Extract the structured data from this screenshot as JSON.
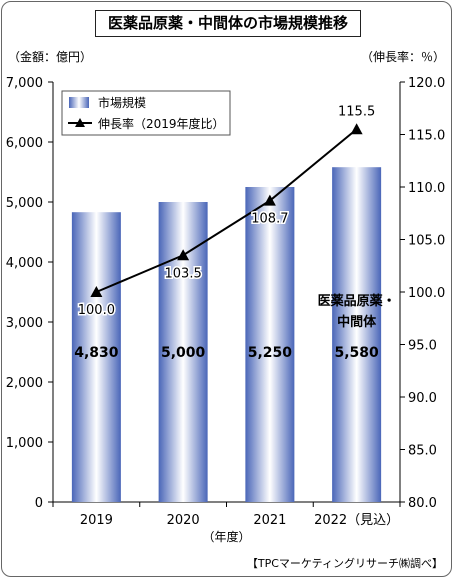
{
  "title": "医薬品原薬・中間体の市場規模推移",
  "unit_left": "（金額：億円）",
  "unit_right": "（伸長率：％）",
  "source": "【TPCマーケティングリサーチ㈱調べ】",
  "colors": {
    "bar_center": "#ffffff",
    "bar_edge": "#4a66b8",
    "line": "#000000",
    "axis": "#000000"
  },
  "chart_data": {
    "type": "bar+line",
    "categories": [
      "2019",
      "2020",
      "2021",
      "2022（見込）"
    ],
    "xlabel": "（年度）",
    "y_left": {
      "range": [
        0,
        7000
      ],
      "ticks": [
        "0",
        "1,000",
        "2,000",
        "3,000",
        "4,000",
        "5,000",
        "6,000",
        "7,000"
      ]
    },
    "y_right": {
      "range": [
        80.0,
        120.0
      ],
      "ticks": [
        "80.0",
        "85.0",
        "90.0",
        "95.0",
        "100.0",
        "105.0",
        "110.0",
        "115.0",
        "120.0"
      ]
    },
    "series": [
      {
        "name": "市場規模",
        "type": "bar",
        "axis": "left",
        "values": [
          4830,
          5000,
          5250,
          5580
        ],
        "labels": [
          "4,830",
          "5,000",
          "5,250",
          "5,580"
        ]
      },
      {
        "name": "伸長率（2019年度比）",
        "type": "line",
        "axis": "right",
        "values": [
          100.0,
          103.5,
          108.7,
          115.5
        ],
        "labels": [
          "100.0",
          "103.5",
          "108.7",
          "115.5"
        ]
      }
    ],
    "annotation": [
      "医薬品原薬・",
      "中間体"
    ],
    "legend": "top-left",
    "grid": false
  }
}
